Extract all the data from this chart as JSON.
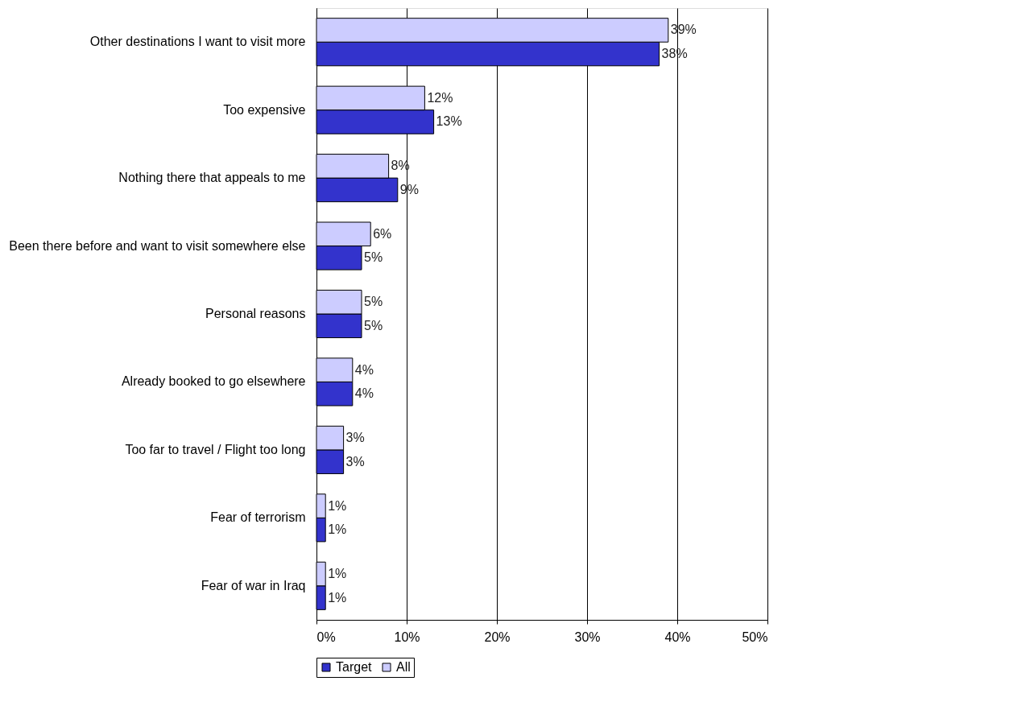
{
  "chart_data": {
    "type": "bar",
    "orientation": "horizontal",
    "categories": [
      "Other destinations I want to visit more",
      "Too expensive",
      "Nothing there that appeals to me",
      "Been there before and want to visit somewhere else",
      "Personal reasons",
      "Already booked to go elsewhere",
      "Too far to travel / Flight too long",
      "Fear of terrorism",
      "Fear of war in Iraq"
    ],
    "series": [
      {
        "name": "Target",
        "color": "#3333cc",
        "values": [
          38,
          13,
          9,
          5,
          5,
          4,
          3,
          1,
          1
        ],
        "value_labels": [
          "38%",
          "13%",
          "9%",
          "5%",
          "5%",
          "4%",
          "3%",
          "1%",
          "1%"
        ]
      },
      {
        "name": "All",
        "color": "#ccccff",
        "values": [
          39,
          12,
          8,
          6,
          5,
          4,
          3,
          1,
          1
        ],
        "value_labels": [
          "39%",
          "12%",
          "8%",
          "6%",
          "5%",
          "4%",
          "3%",
          "1%",
          "1%"
        ]
      }
    ],
    "xlim": [
      0,
      50
    ],
    "xticks": [
      {
        "value": 0,
        "label": "0%"
      },
      {
        "value": 10,
        "label": "10%"
      },
      {
        "value": 20,
        "label": "20%"
      },
      {
        "value": 30,
        "label": "30%"
      },
      {
        "value": 40,
        "label": "40%"
      },
      {
        "value": 50,
        "label": "50%"
      }
    ],
    "grid": "x",
    "legend": "bottom"
  }
}
